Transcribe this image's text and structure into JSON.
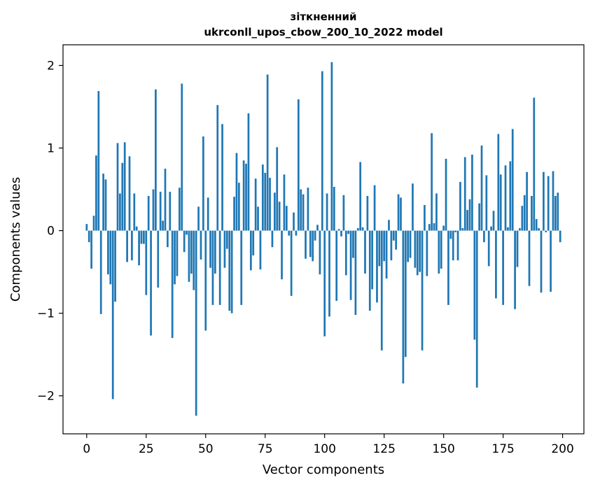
{
  "chart_data": {
    "type": "bar",
    "title": "зіткненний",
    "subtitle": "ukrconll_upos_cbow_200_10_2022 model",
    "xlabel": "Vector components",
    "ylabel": "Components values",
    "xlim": [
      -9.95,
      208.95
    ],
    "ylim": [
      -2.46,
      2.25
    ],
    "xticks": [
      0,
      25,
      50,
      75,
      100,
      125,
      150,
      175,
      200
    ],
    "xtick_labels": [
      "0",
      "25",
      "50",
      "75",
      "100",
      "125",
      "150",
      "175",
      "200"
    ],
    "yticks": [
      2,
      1,
      0,
      -1,
      -2
    ],
    "ytick_labels": [
      "2",
      "1",
      "0",
      "−1",
      "−2"
    ],
    "bar_color": "#1f77b4",
    "grid": false,
    "legend": "none",
    "x": [
      0,
      1,
      2,
      3,
      4,
      5,
      6,
      7,
      8,
      9,
      10,
      11,
      12,
      13,
      14,
      15,
      16,
      17,
      18,
      19,
      20,
      21,
      22,
      23,
      24,
      25,
      26,
      27,
      28,
      29,
      30,
      31,
      32,
      33,
      34,
      35,
      36,
      37,
      38,
      39,
      40,
      41,
      42,
      43,
      44,
      45,
      46,
      47,
      48,
      49,
      50,
      51,
      52,
      53,
      54,
      55,
      56,
      57,
      58,
      59,
      60,
      61,
      62,
      63,
      64,
      65,
      66,
      67,
      68,
      69,
      70,
      71,
      72,
      73,
      74,
      75,
      76,
      77,
      78,
      79,
      80,
      81,
      82,
      83,
      84,
      85,
      86,
      87,
      88,
      89,
      90,
      91,
      92,
      93,
      94,
      95,
      96,
      97,
      98,
      99,
      100,
      101,
      102,
      103,
      104,
      105,
      106,
      107,
      108,
      109,
      110,
      111,
      112,
      113,
      114,
      115,
      116,
      117,
      118,
      119,
      120,
      121,
      122,
      123,
      124,
      125,
      126,
      127,
      128,
      129,
      130,
      131,
      132,
      133,
      134,
      135,
      136,
      137,
      138,
      139,
      140,
      141,
      142,
      143,
      144,
      145,
      146,
      147,
      148,
      149,
      150,
      151,
      152,
      153,
      154,
      155,
      156,
      157,
      158,
      159,
      160,
      161,
      162,
      163,
      164,
      165,
      166,
      167,
      168,
      169,
      170,
      171,
      172,
      173,
      174,
      175,
      176,
      177,
      178,
      179,
      180,
      181,
      182,
      183,
      184,
      185,
      186,
      187,
      188,
      189,
      190,
      191,
      192,
      193,
      194,
      195,
      196,
      197,
      198,
      199
    ],
    "values": [
      0.08,
      -0.14,
      -0.46,
      0.18,
      0.91,
      1.69,
      -1.01,
      0.69,
      0.62,
      -0.53,
      -0.65,
      -2.04,
      -0.86,
      1.06,
      0.45,
      0.82,
      1.07,
      -0.38,
      0.9,
      -0.36,
      0.45,
      0.05,
      -0.42,
      -0.16,
      -0.16,
      -0.78,
      0.42,
      -1.27,
      0.5,
      1.71,
      -0.69,
      0.47,
      0.12,
      0.75,
      -0.2,
      0.47,
      -1.3,
      -0.65,
      -0.55,
      0.52,
      1.78,
      -0.26,
      -0.05,
      -0.62,
      -0.52,
      -0.72,
      -2.24,
      0.29,
      -0.35,
      1.14,
      -1.21,
      0.4,
      -0.45,
      -0.9,
      -0.52,
      1.52,
      -0.9,
      1.29,
      -0.45,
      -0.22,
      -0.97,
      -1.0,
      0.41,
      0.94,
      0.58,
      -0.9,
      0.85,
      0.81,
      1.42,
      -0.48,
      -0.3,
      0.63,
      0.29,
      -0.47,
      0.8,
      0.7,
      1.89,
      0.64,
      -0.2,
      0.46,
      1.01,
      0.35,
      -0.59,
      0.68,
      0.3,
      -0.06,
      -0.79,
      0.22,
      -0.06,
      1.59,
      0.5,
      0.44,
      -0.34,
      0.52,
      -0.32,
      -0.37,
      -0.12,
      0.07,
      -0.53,
      1.93,
      -1.28,
      0.45,
      -1.04,
      2.04,
      0.53,
      -0.85,
      0.02,
      -0.07,
      0.43,
      -0.54,
      -0.04,
      -0.84,
      -0.33,
      -1.02,
      0.03,
      0.83,
      0.04,
      -0.52,
      0.42,
      -0.97,
      -0.71,
      0.55,
      -0.87,
      -0.43,
      -1.45,
      -0.37,
      -0.58,
      0.13,
      -0.36,
      -0.12,
      -0.23,
      0.44,
      0.4,
      -1.85,
      -1.53,
      -0.38,
      -0.33,
      0.57,
      -0.45,
      -0.54,
      -0.5,
      -1.45,
      0.31,
      -0.55,
      0.08,
      1.18,
      0.09,
      0.45,
      -0.52,
      -0.46,
      0.06,
      0.87,
      -0.9,
      -0.1,
      -0.36,
      -0.02,
      -0.36,
      0.59,
      0.03,
      0.89,
      0.25,
      0.38,
      0.92,
      -1.32,
      -1.9,
      0.33,
      1.03,
      -0.14,
      0.67,
      -0.43,
      0.05,
      0.24,
      -0.82,
      1.17,
      0.68,
      -0.9,
      0.79,
      0.04,
      0.84,
      1.23,
      -0.95,
      -0.44,
      0.03,
      0.3,
      0.43,
      0.71,
      -0.67,
      0.42,
      1.61,
      0.14,
      0.03,
      -0.75,
      0.71,
      -0.02,
      0.66,
      -0.74,
      0.72,
      0.42,
      0.46,
      -0.14
    ]
  }
}
